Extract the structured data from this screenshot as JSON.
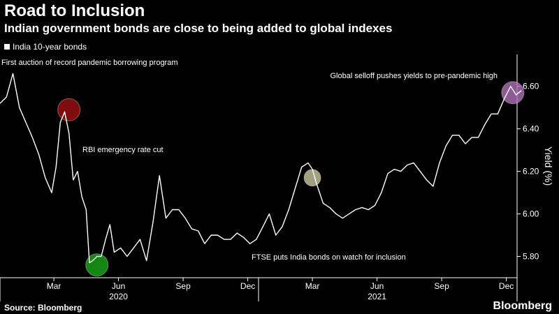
{
  "header": {
    "title": "Road to Inclusion",
    "subtitle": "Indian government bonds are close to being added to global indexes"
  },
  "footer": {
    "source": "Source: Bloomberg",
    "brand": "Bloomberg"
  },
  "chart_data": {
    "type": "line",
    "title": "Road to Inclusion",
    "subtitle": "Indian government bonds are close to being added to global indexes",
    "legend": [
      "India 10-year bonds"
    ],
    "ylabel": "Yield (%)",
    "ylim": [
      5.7,
      6.75
    ],
    "yticks": [
      "5.80",
      "6.00",
      "6.20",
      "6.40",
      "6.60"
    ],
    "yticks_values": [
      5.8,
      6.0,
      6.2,
      6.4,
      6.6
    ],
    "xlim": [
      0,
      24
    ],
    "xticks": [
      "Mar",
      "Jun",
      "Sep",
      "Dec",
      "Mar",
      "Jun",
      "Sep",
      "Dec"
    ],
    "xticks_values": [
      2.5,
      5.5,
      8.5,
      11.5,
      14.5,
      17.5,
      20.5,
      23.5
    ],
    "years": [
      "2020",
      "2021"
    ],
    "years_values": [
      5.5,
      17.5
    ],
    "series": [
      {
        "name": "India 10-year bonds",
        "x": [
          0,
          0.3,
          0.6,
          0.9,
          1.2,
          1.5,
          1.8,
          2.1,
          2.4,
          2.6,
          2.8,
          3.0,
          3.2,
          3.4,
          3.6,
          3.8,
          4.0,
          4.15,
          4.3,
          4.5,
          4.7,
          4.9,
          5.1,
          5.3,
          5.6,
          5.9,
          6.2,
          6.5,
          6.8,
          7.1,
          7.4,
          7.7,
          8.0,
          8.3,
          8.6,
          8.9,
          9.2,
          9.5,
          9.8,
          10.1,
          10.4,
          10.7,
          11.0,
          11.3,
          11.6,
          11.9,
          12.2,
          12.5,
          12.8,
          13.1,
          13.4,
          13.7,
          14.0,
          14.3,
          14.5,
          14.7,
          15.0,
          15.3,
          15.6,
          15.9,
          16.2,
          16.5,
          16.8,
          17.1,
          17.4,
          17.7,
          18.0,
          18.3,
          18.6,
          18.9,
          19.2,
          19.5,
          19.8,
          20.1,
          20.4,
          20.7,
          21.0,
          21.3,
          21.6,
          21.9,
          22.2,
          22.5,
          22.8,
          23.1,
          23.4,
          23.7,
          23.95,
          24.2
        ],
        "values": [
          6.52,
          6.55,
          6.66,
          6.5,
          6.43,
          6.36,
          6.28,
          6.17,
          6.1,
          6.22,
          6.43,
          6.48,
          6.38,
          6.16,
          6.2,
          6.08,
          6.02,
          5.77,
          5.78,
          5.8,
          5.8,
          5.88,
          5.95,
          5.82,
          5.84,
          5.8,
          5.84,
          5.88,
          5.78,
          5.96,
          6.18,
          5.98,
          6.02,
          6.02,
          5.98,
          5.93,
          5.92,
          5.86,
          5.9,
          5.9,
          5.88,
          5.88,
          5.91,
          5.89,
          5.86,
          5.88,
          5.94,
          6.0,
          5.9,
          5.94,
          6.02,
          6.12,
          6.22,
          6.24,
          6.21,
          6.14,
          6.05,
          6.03,
          6.0,
          5.98,
          6.0,
          6.02,
          6.03,
          6.02,
          6.04,
          6.1,
          6.19,
          6.21,
          6.2,
          6.23,
          6.24,
          6.2,
          6.16,
          6.13,
          6.24,
          6.32,
          6.37,
          6.37,
          6.33,
          6.36,
          6.36,
          6.42,
          6.47,
          6.47,
          6.54,
          6.6,
          6.56,
          6.58
        ]
      }
    ],
    "annotations": [
      {
        "label": "First auction of record pandemic borrowing program",
        "x": 3.2,
        "y": 6.49,
        "color": "#a01010"
      },
      {
        "label": "RBI emergency rate cut",
        "x": 4.5,
        "y": 5.76,
        "color": "#18a818"
      },
      {
        "label": "FTSE puts India bonds on watch for inclusion",
        "x": 14.5,
        "y": 6.17,
        "color": "#c8c8a0"
      },
      {
        "label": "Global selloff pushes yields to pre-pandemic high",
        "x": 23.8,
        "y": 6.57,
        "color": "#b070b8"
      }
    ]
  }
}
